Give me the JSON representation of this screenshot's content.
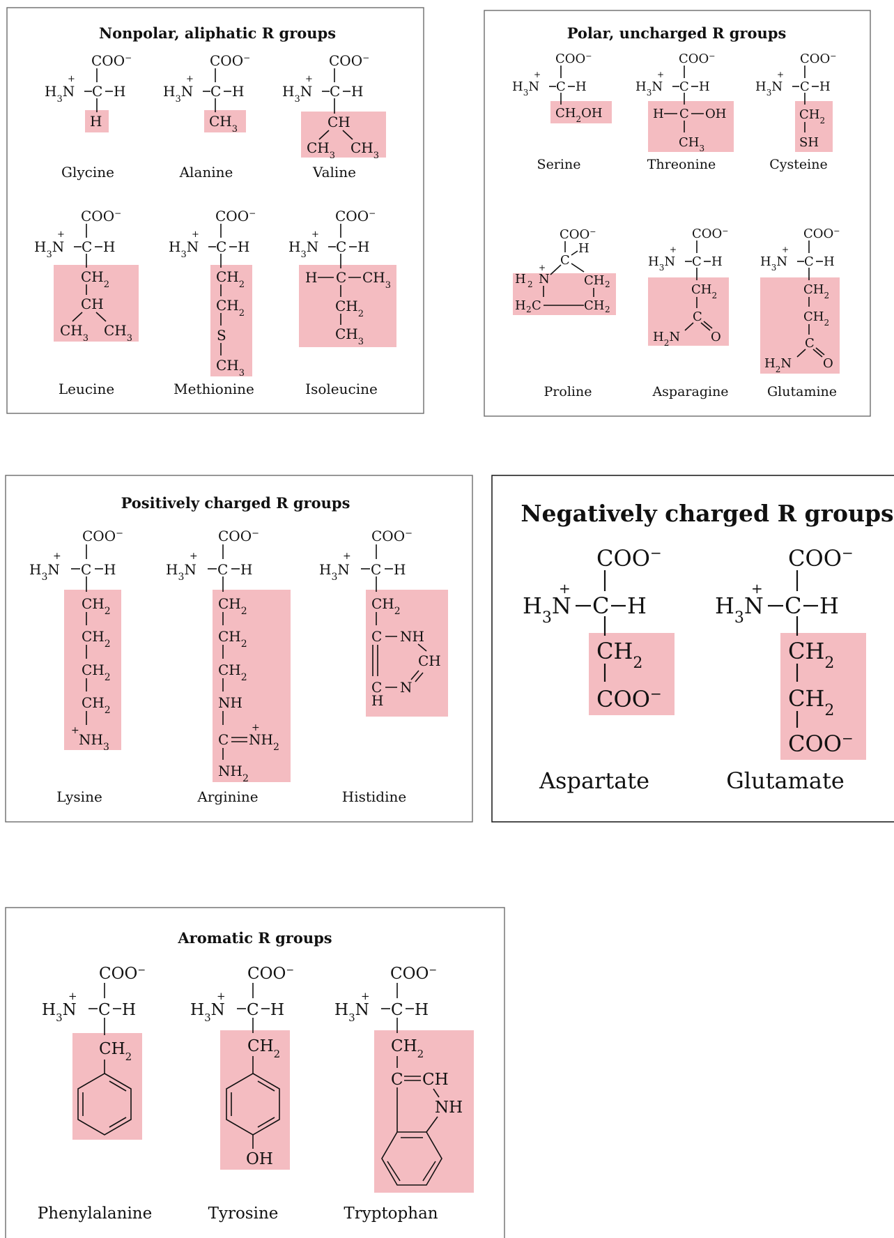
{
  "panels": {
    "nonpolar": {
      "title": "Nonpolar, aliphatic R groups",
      "names": [
        "Glycine",
        "Alanine",
        "Valine",
        "Leucine",
        "Methionine",
        "Isoleucine"
      ]
    },
    "polar": {
      "title": "Polar, uncharged R groups",
      "names": [
        "Serine",
        "Threonine",
        "Cysteine",
        "Proline",
        "Asparagine",
        "Glutamine"
      ]
    },
    "positive": {
      "title": "Positively charged R groups",
      "names": [
        "Lysine",
        "Arginine",
        "Histidine"
      ]
    },
    "negative": {
      "title": "Negatively charged R groups",
      "names": [
        "Aspartate",
        "Glutamate"
      ]
    },
    "aromatic": {
      "title": "Aromatic R groups",
      "names": [
        "Phenylalanine",
        "Tyrosine",
        "Tryptophan"
      ]
    }
  },
  "colors": {
    "highlight": "#f4bcc1",
    "panel_border": "#6b6b6b"
  }
}
